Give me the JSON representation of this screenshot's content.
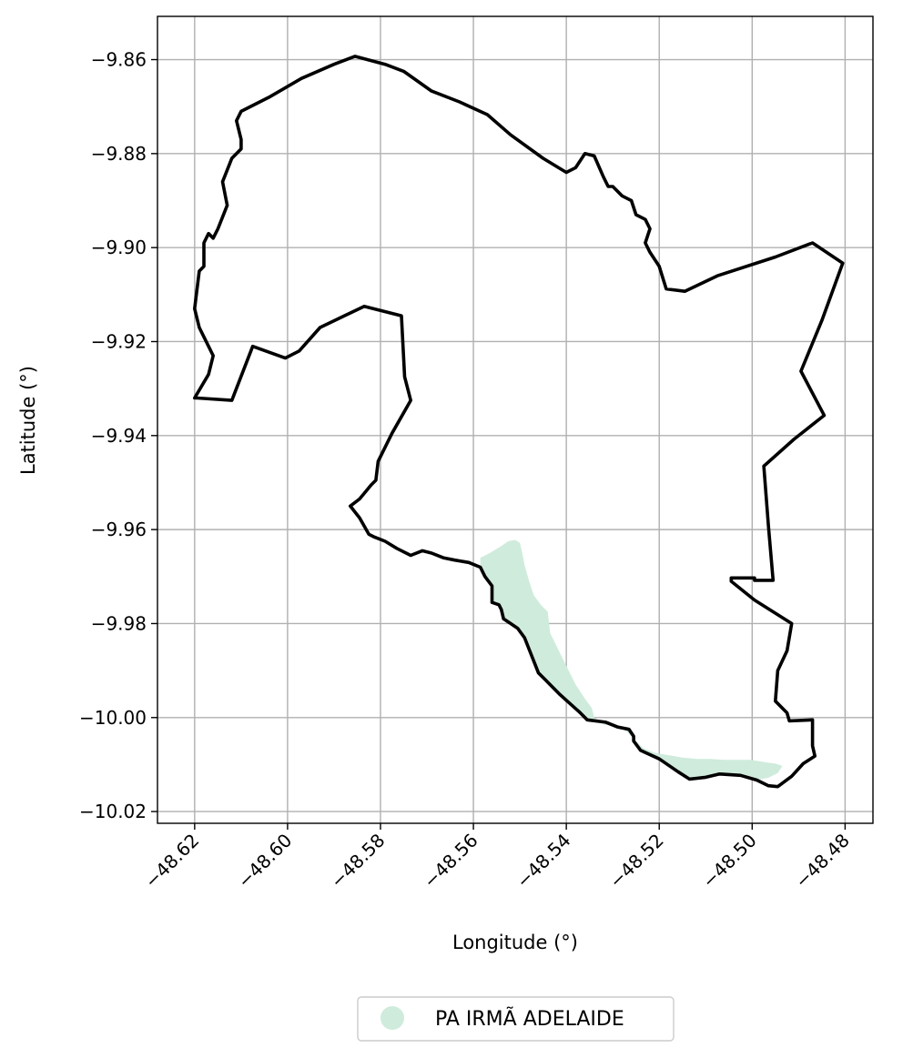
{
  "chart_data": {
    "type": "map",
    "xlabel": "Longitude (°)",
    "ylabel": "Latitude (°)",
    "xlim": [
      -48.628,
      -48.474
    ],
    "ylim": [
      -10.0225,
      -9.8508
    ],
    "xticks": [
      -48.62,
      -48.6,
      -48.58,
      -48.56,
      -48.54,
      -48.52,
      -48.5,
      -48.48
    ],
    "xtick_labels": [
      "−48.62",
      "−48.60",
      "−48.58",
      "−48.56",
      "−48.54",
      "−48.52",
      "−48.50",
      "−48.48"
    ],
    "yticks": [
      -9.86,
      -9.88,
      -9.9,
      -9.92,
      -9.94,
      -9.96,
      -9.98,
      -10.0,
      -10.02
    ],
    "ytick_labels": [
      "−9.86",
      "−9.88",
      "−9.90",
      "−9.92",
      "−9.94",
      "−9.96",
      "−9.98",
      "−10.00",
      "−10.02"
    ],
    "grid": true,
    "boundary": [
      [
        -48.62,
        -9.932
      ],
      [
        -48.617,
        -9.927
      ],
      [
        -48.616,
        -9.923
      ],
      [
        -48.618,
        -9.919
      ],
      [
        -48.619,
        -9.917
      ],
      [
        -48.62,
        -9.913
      ],
      [
        -48.619,
        -9.905
      ],
      [
        -48.618,
        -9.904
      ],
      [
        -48.618,
        -9.899
      ],
      [
        -48.617,
        -9.897
      ],
      [
        -48.616,
        -9.898
      ],
      [
        -48.615,
        -9.896
      ],
      [
        -48.613,
        -9.891
      ],
      [
        -48.614,
        -9.886
      ],
      [
        -48.612,
        -9.881
      ],
      [
        -48.61,
        -9.879
      ],
      [
        -48.61,
        -9.877
      ],
      [
        -48.611,
        -9.873
      ],
      [
        -48.61,
        -9.871
      ],
      [
        -48.604,
        -9.868
      ],
      [
        -48.597,
        -9.864
      ],
      [
        -48.59,
        -9.861
      ],
      [
        -48.5855,
        -9.8593
      ],
      [
        -48.579,
        -9.861
      ],
      [
        -48.575,
        -9.8625
      ],
      [
        -48.569,
        -9.8667
      ],
      [
        -48.563,
        -9.869
      ],
      [
        -48.557,
        -9.8717
      ],
      [
        -48.552,
        -9.876
      ],
      [
        -48.545,
        -9.881
      ],
      [
        -48.54,
        -9.884
      ],
      [
        -48.538,
        -9.883
      ],
      [
        -48.536,
        -9.88
      ],
      [
        -48.534,
        -9.8805
      ],
      [
        -48.532,
        -9.885
      ],
      [
        -48.531,
        -9.887
      ],
      [
        -48.53,
        -9.887
      ],
      [
        -48.528,
        -9.889
      ],
      [
        -48.526,
        -9.89
      ],
      [
        -48.525,
        -9.893
      ],
      [
        -48.523,
        -9.894
      ],
      [
        -48.522,
        -9.896
      ],
      [
        -48.523,
        -9.899
      ],
      [
        -48.522,
        -9.901
      ],
      [
        -48.52,
        -9.904
      ],
      [
        -48.5185,
        -9.9088
      ],
      [
        -48.5145,
        -9.9093
      ],
      [
        -48.5075,
        -9.906
      ],
      [
        -48.495,
        -9.902
      ],
      [
        -48.487,
        -9.899
      ],
      [
        -48.4805,
        -9.9033
      ],
      [
        -48.485,
        -9.9155
      ],
      [
        -48.4895,
        -9.9263
      ],
      [
        -48.4845,
        -9.9357
      ],
      [
        -48.491,
        -9.9408
      ],
      [
        -48.4975,
        -9.9465
      ],
      [
        -48.4965,
        -9.9593
      ],
      [
        -48.4955,
        -9.9708
      ],
      [
        -48.4995,
        -9.9708
      ],
      [
        -48.4995,
        -9.9703
      ],
      [
        -48.5045,
        -9.9703
      ],
      [
        -48.5045,
        -9.971
      ],
      [
        -48.4995,
        -9.975
      ],
      [
        -48.4915,
        -9.98
      ],
      [
        -48.4925,
        -9.9858
      ],
      [
        -48.4945,
        -9.99
      ],
      [
        -48.495,
        -9.9965
      ],
      [
        -48.4925,
        -9.999
      ],
      [
        -48.492,
        -10.0007
      ],
      [
        -48.487,
        -10.0005
      ],
      [
        -48.487,
        -10.006
      ],
      [
        -48.4865,
        -10.0082
      ],
      [
        -48.489,
        -10.0098
      ],
      [
        -48.4915,
        -10.0125
      ],
      [
        -48.4945,
        -10.0147
      ],
      [
        -48.4965,
        -10.0145
      ],
      [
        -48.499,
        -10.0133
      ],
      [
        -48.5025,
        -10.0123
      ],
      [
        -48.507,
        -10.012
      ],
      [
        -48.51,
        -10.0127
      ],
      [
        -48.5135,
        -10.0131
      ],
      [
        -48.516,
        -10.0115
      ],
      [
        -48.52,
        -10.0088
      ],
      [
        -48.524,
        -10.007
      ],
      [
        -48.5255,
        -10.005
      ],
      [
        -48.5255,
        -10.004
      ],
      [
        -48.5265,
        -10.0025
      ],
      [
        -48.529,
        -10.002
      ],
      [
        -48.5315,
        -10.001
      ],
      [
        -48.5355,
        -10.0005
      ],
      [
        -48.537,
        -9.999
      ],
      [
        -48.5415,
        -9.995
      ],
      [
        -48.5445,
        -9.992
      ],
      [
        -48.546,
        -9.9905
      ],
      [
        -48.549,
        -9.983
      ],
      [
        -48.5505,
        -9.981
      ],
      [
        -48.552,
        -9.98
      ],
      [
        -48.5535,
        -9.979
      ],
      [
        -48.554,
        -9.977
      ],
      [
        -48.5545,
        -9.976
      ],
      [
        -48.556,
        -9.9755
      ],
      [
        -48.556,
        -9.972
      ],
      [
        -48.5575,
        -9.97
      ],
      [
        -48.5585,
        -9.968
      ],
      [
        -48.561,
        -9.967
      ],
      [
        -48.564,
        -9.9665
      ],
      [
        -48.5665,
        -9.966
      ],
      [
        -48.569,
        -9.965
      ],
      [
        -48.571,
        -9.9645
      ],
      [
        -48.5735,
        -9.9655
      ],
      [
        -48.5765,
        -9.964
      ],
      [
        -48.579,
        -9.9625
      ],
      [
        -48.5815,
        -9.9615
      ],
      [
        -48.5825,
        -9.961
      ],
      [
        -48.5845,
        -9.9575
      ],
      [
        -48.5865,
        -9.955
      ],
      [
        -48.5845,
        -9.9535
      ],
      [
        -48.582,
        -9.9505
      ],
      [
        -48.581,
        -9.9495
      ],
      [
        -48.5805,
        -9.9455
      ],
      [
        -48.5775,
        -9.9395
      ],
      [
        -48.5735,
        -9.9325
      ],
      [
        -48.5748,
        -9.9275
      ],
      [
        -48.5755,
        -9.9145
      ],
      [
        -48.5835,
        -9.9125
      ],
      [
        -48.593,
        -9.917
      ],
      [
        -48.5975,
        -9.922
      ],
      [
        -48.6005,
        -9.9235
      ],
      [
        -48.6075,
        -9.921
      ],
      [
        -48.612,
        -9.9325
      ],
      [
        -48.6195,
        -9.932
      ]
    ],
    "series": [
      {
        "name": "PA IRMÃ ADELAIDE",
        "color": "#cfebdc",
        "polygon": [
          [
            -48.5585,
            -9.966
          ],
          [
            -48.5565,
            -9.965
          ],
          [
            -48.554,
            -9.9635
          ],
          [
            -48.5525,
            -9.9625
          ],
          [
            -48.551,
            -9.9622
          ],
          [
            -48.55,
            -9.9628
          ],
          [
            -48.5495,
            -9.965
          ],
          [
            -48.549,
            -9.9675
          ],
          [
            -48.548,
            -9.971
          ],
          [
            -48.547,
            -9.974
          ],
          [
            -48.5455,
            -9.976
          ],
          [
            -48.544,
            -9.9775
          ],
          [
            -48.5435,
            -9.982
          ],
          [
            -48.5425,
            -9.984
          ],
          [
            -48.541,
            -9.987
          ],
          [
            -48.5395,
            -9.99
          ],
          [
            -48.538,
            -9.993
          ],
          [
            -48.536,
            -9.996
          ],
          [
            -48.5345,
            -9.998
          ],
          [
            -48.534,
            -10.0
          ],
          [
            -48.532,
            -10.0015
          ],
          [
            -48.529,
            -10.0018
          ],
          [
            -48.527,
            -10.003
          ],
          [
            -48.525,
            -10.005
          ],
          [
            -48.5235,
            -10.0065
          ],
          [
            -48.521,
            -10.0075
          ],
          [
            -48.518,
            -10.008
          ],
          [
            -48.515,
            -10.0085
          ],
          [
            -48.512,
            -10.0088
          ],
          [
            -48.509,
            -10.0088
          ],
          [
            -48.506,
            -10.009
          ],
          [
            -48.503,
            -10.009
          ],
          [
            -48.5005,
            -10.009
          ],
          [
            -48.4985,
            -10.0093
          ],
          [
            -48.4965,
            -10.0096
          ],
          [
            -48.495,
            -10.0098
          ],
          [
            -48.4935,
            -10.0103
          ],
          [
            -48.4945,
            -10.0118
          ],
          [
            -48.4965,
            -10.0128
          ],
          [
            -48.499,
            -10.0133
          ],
          [
            -48.5025,
            -10.0123
          ],
          [
            -48.507,
            -10.012
          ],
          [
            -48.51,
            -10.0127
          ],
          [
            -48.5135,
            -10.0131
          ],
          [
            -48.516,
            -10.0115
          ],
          [
            -48.52,
            -10.0088
          ],
          [
            -48.524,
            -10.007
          ],
          [
            -48.5255,
            -10.005
          ],
          [
            -48.5265,
            -10.0025
          ],
          [
            -48.5315,
            -10.001
          ],
          [
            -48.5355,
            -10.0005
          ],
          [
            -48.537,
            -9.999
          ],
          [
            -48.5415,
            -9.995
          ],
          [
            -48.5445,
            -9.992
          ],
          [
            -48.546,
            -9.9905
          ],
          [
            -48.549,
            -9.983
          ],
          [
            -48.5505,
            -9.981
          ],
          [
            -48.5535,
            -9.979
          ],
          [
            -48.5545,
            -9.976
          ],
          [
            -48.556,
            -9.9755
          ],
          [
            -48.556,
            -9.972
          ],
          [
            -48.5575,
            -9.97
          ],
          [
            -48.5585,
            -9.968
          ]
        ]
      }
    ],
    "legend": {
      "placement": "bottom-center",
      "entries": [
        {
          "label": "PA IRMÃ ADELAIDE",
          "marker": "circle",
          "color": "#cfebdc"
        }
      ]
    }
  }
}
